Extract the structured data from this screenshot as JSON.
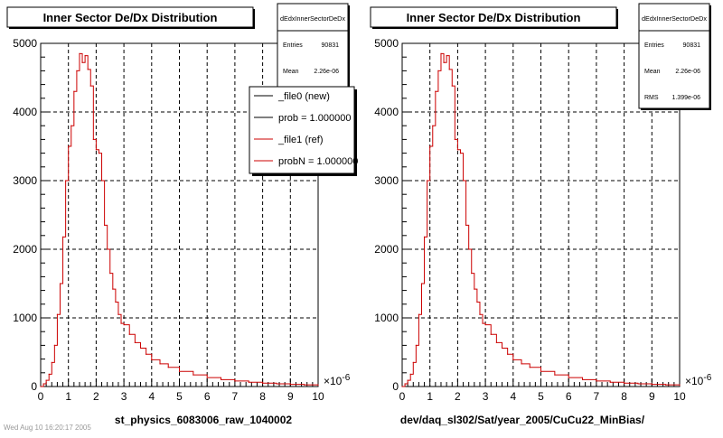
{
  "chart_data": [
    {
      "type": "line",
      "title": "Inner Sector De/Dx Distribution",
      "xlabel": "st_physics_6083006_raw_1040002",
      "ylabel": "",
      "x_multiplier": "×10",
      "x_exponent": "-6",
      "xlim": [
        0,
        10
      ],
      "ylim": [
        0,
        5000
      ],
      "x_ticks": [
        "0",
        "1",
        "2",
        "3",
        "4",
        "5",
        "6",
        "7",
        "8",
        "9",
        "10"
      ],
      "y_ticks": [
        "0",
        "1000",
        "2000",
        "3000",
        "4000",
        "5000"
      ],
      "grid": true,
      "stats": {
        "name": "dEdxInnerSectorDeDx",
        "rows": [
          {
            "label": "Entries",
            "value": "90831"
          },
          {
            "label": "Mean",
            "value": "2.26e-06"
          }
        ]
      },
      "legend": {
        "placement": "top-right",
        "entries": [
          {
            "label": "_file0 (new)",
            "color": "#000000"
          },
          {
            "label": "prob = 1.000000",
            "color": "#000000"
          },
          {
            "label": "_file1 (ref)",
            "color": "#cc0000"
          },
          {
            "label": "probN = 1.000000",
            "color": "#cc0000"
          }
        ]
      },
      "series": [
        {
          "color": "#cc0000",
          "x": [
            0.0,
            0.1,
            0.2,
            0.3,
            0.4,
            0.5,
            0.6,
            0.7,
            0.8,
            0.9,
            1.0,
            1.1,
            1.2,
            1.3,
            1.4,
            1.5,
            1.6,
            1.7,
            1.8,
            1.9,
            2.0,
            2.1,
            2.2,
            2.3,
            2.4,
            2.5,
            2.6,
            2.7,
            2.8,
            2.9,
            3.0,
            3.2,
            3.4,
            3.6,
            3.8,
            4.0,
            4.3,
            4.6,
            5.0,
            5.5,
            6.0,
            6.5,
            7.0,
            7.5,
            8.0,
            8.5,
            9.0,
            9.5,
            10.0
          ],
          "values": [
            0,
            40,
            90,
            180,
            350,
            600,
            1050,
            1500,
            2180,
            3000,
            3500,
            3800,
            4300,
            4600,
            4850,
            4720,
            4820,
            4620,
            4380,
            3600,
            3450,
            3400,
            3000,
            2350,
            2000,
            1650,
            1420,
            1230,
            1050,
            920,
            900,
            760,
            640,
            560,
            470,
            390,
            330,
            280,
            220,
            170,
            130,
            100,
            80,
            62,
            50,
            40,
            32,
            25,
            20
          ]
        }
      ]
    },
    {
      "type": "line",
      "title": "Inner Sector De/Dx Distribution",
      "xlabel": "dev/daq_sl302/Sat/year_2005/CuCu22_MinBias/",
      "ylabel": "",
      "x_multiplier": "×10",
      "x_exponent": "-6",
      "xlim": [
        0,
        10
      ],
      "ylim": [
        0,
        5000
      ],
      "x_ticks": [
        "0",
        "1",
        "2",
        "3",
        "4",
        "5",
        "6",
        "7",
        "8",
        "9",
        "10"
      ],
      "y_ticks": [
        "0",
        "1000",
        "2000",
        "3000",
        "4000",
        "5000"
      ],
      "grid": true,
      "stats": {
        "name": "dEdxInnerSectorDeDx",
        "rows": [
          {
            "label": "Entries",
            "value": "90831"
          },
          {
            "label": "Mean",
            "value": "2.26e-06"
          },
          {
            "label": "RMS",
            "value": "1.399e-06"
          }
        ]
      },
      "series": [
        {
          "color": "#cc0000",
          "x": [
            0.0,
            0.1,
            0.2,
            0.3,
            0.4,
            0.5,
            0.6,
            0.7,
            0.8,
            0.9,
            1.0,
            1.1,
            1.2,
            1.3,
            1.4,
            1.5,
            1.6,
            1.7,
            1.8,
            1.9,
            2.0,
            2.1,
            2.2,
            2.3,
            2.4,
            2.5,
            2.6,
            2.7,
            2.8,
            2.9,
            3.0,
            3.2,
            3.4,
            3.6,
            3.8,
            4.0,
            4.3,
            4.6,
            5.0,
            5.5,
            6.0,
            6.5,
            7.0,
            7.5,
            8.0,
            8.5,
            9.0,
            9.5,
            10.0
          ],
          "values": [
            0,
            40,
            90,
            180,
            350,
            600,
            1050,
            1500,
            2180,
            3000,
            3500,
            3800,
            4300,
            4600,
            4850,
            4720,
            4820,
            4620,
            4380,
            3600,
            3450,
            3400,
            3000,
            2350,
            2000,
            1650,
            1420,
            1230,
            1050,
            920,
            900,
            760,
            640,
            560,
            470,
            390,
            330,
            280,
            220,
            170,
            130,
            100,
            80,
            62,
            50,
            40,
            32,
            25,
            20
          ]
        }
      ]
    }
  ],
  "footer_text": "Wed Aug 10 16:20:17 2005"
}
